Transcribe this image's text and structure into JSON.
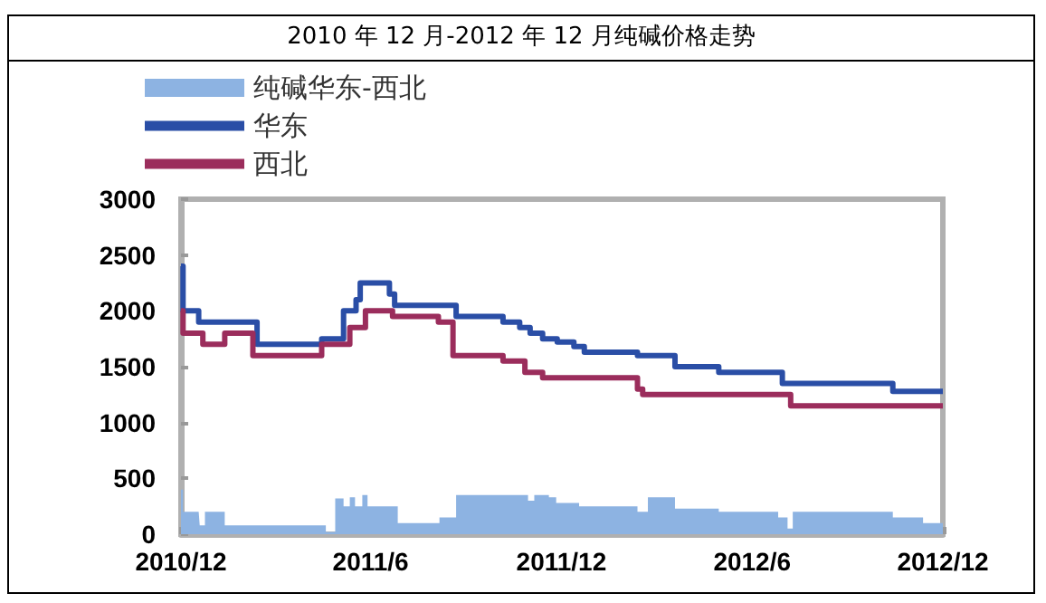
{
  "chart_data": {
    "type": "step",
    "title": "2010 年 12 月-2012 年 12 月纯碱价格走势",
    "xlim": [
      "2010-12",
      "2012-12"
    ],
    "xticks": [
      {
        "value": "2010-12",
        "label": "2010/12"
      },
      {
        "value": "2011-06",
        "label": "2011/6"
      },
      {
        "value": "2011-12",
        "label": "2011/12"
      },
      {
        "value": "2012-06",
        "label": "2012/6"
      },
      {
        "value": "2012-12",
        "label": "2012/12"
      }
    ],
    "ylim": [
      0,
      3000
    ],
    "yticks": [
      0,
      500,
      1000,
      1500,
      2000,
      2500,
      3000
    ],
    "grid": false,
    "legend": "top left",
    "marker": "none",
    "series": [
      {
        "name": "纯碱华东-西北",
        "type": "area",
        "color": "#8db3e2",
        "x": [
          "2010-12-01",
          "2010-12-03",
          "2010-12-18",
          "2010-12-19",
          "2010-12-24",
          "2011-01-12",
          "2011-04-15",
          "2011-04-19",
          "2011-04-28",
          "2011-05-06",
          "2011-05-12",
          "2011-05-17",
          "2011-05-24",
          "2011-05-29",
          "2011-06-19",
          "2011-06-27",
          "2011-08-06",
          "2011-08-22",
          "2011-10-30",
          "2011-11-05",
          "2011-11-19",
          "2011-11-26",
          "2011-12-18",
          "2012-02-12",
          "2012-02-22",
          "2012-03-19",
          "2012-04-30",
          "2012-06-26",
          "2012-07-05",
          "2012-07-10",
          "2012-10-14",
          "2012-11-12",
          "2012-12-01"
        ],
        "values": [
          400,
          200,
          200,
          80,
          200,
          80,
          80,
          20,
          320,
          250,
          330,
          250,
          350,
          250,
          250,
          100,
          150,
          350,
          300,
          350,
          330,
          280,
          250,
          200,
          330,
          230,
          200,
          150,
          50,
          200,
          150,
          100,
          130
        ]
      },
      {
        "name": "华东",
        "color": "#2a4ea6",
        "x": [
          "2010-12-01",
          "2010-12-03",
          "2010-12-18",
          "2011-02-12",
          "2011-04-15",
          "2011-05-06",
          "2011-05-18",
          "2011-05-22",
          "2011-06-19",
          "2011-06-24",
          "2011-08-22",
          "2011-10-06",
          "2011-10-22",
          "2011-11-01",
          "2011-11-13",
          "2011-11-27",
          "2011-12-13",
          "2011-12-23",
          "2012-02-12",
          "2012-03-19",
          "2012-04-30",
          "2012-06-30",
          "2012-10-14",
          "2012-12-01"
        ],
        "values": [
          2400,
          2000,
          1900,
          1700,
          1750,
          2000,
          2100,
          2250,
          2150,
          2050,
          1950,
          1900,
          1850,
          1800,
          1750,
          1720,
          1680,
          1630,
          1600,
          1500,
          1450,
          1350,
          1280,
          1280
        ]
      },
      {
        "name": "西北",
        "color": "#9b2d5c",
        "x": [
          "2010-12-01",
          "2010-12-03",
          "2010-12-22",
          "2011-01-12",
          "2011-02-08",
          "2011-04-15",
          "2011-05-12",
          "2011-05-27",
          "2011-06-22",
          "2011-08-05",
          "2011-08-19",
          "2011-10-06",
          "2011-10-27",
          "2011-11-13",
          "2012-02-12",
          "2012-02-17",
          "2012-07-08",
          "2012-12-01"
        ],
        "values": [
          2000,
          1800,
          1700,
          1800,
          1600,
          1700,
          1850,
          2000,
          1950,
          1900,
          1600,
          1550,
          1450,
          1400,
          1300,
          1250,
          1150,
          1150
        ]
      }
    ]
  }
}
